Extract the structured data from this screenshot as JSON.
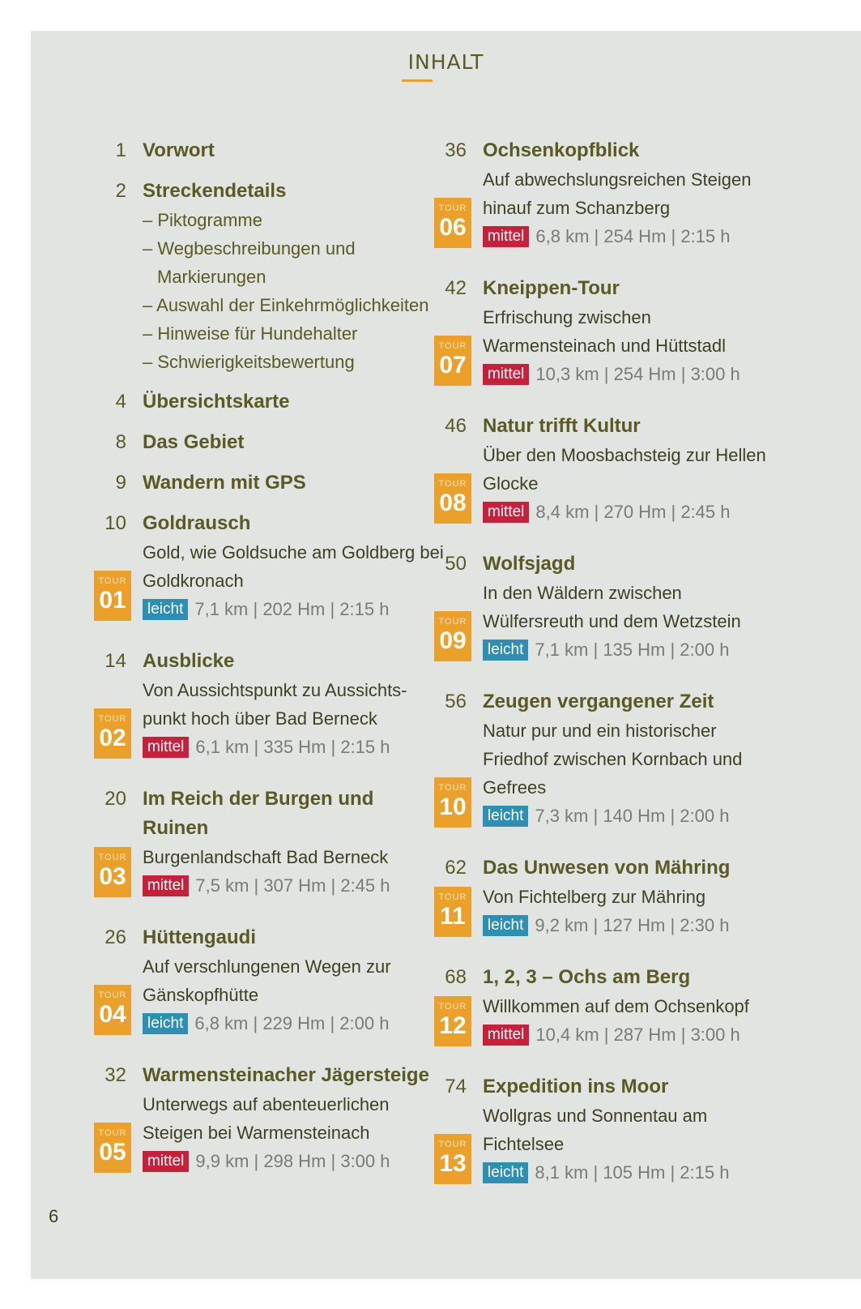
{
  "heading": "INHALT",
  "page_number": "6",
  "left": [
    {
      "num": "1",
      "title": "Vorwort"
    },
    {
      "num": "2",
      "title": "Streckendetails",
      "bullets": [
        "Piktogramme",
        "Wegbeschreibungen und Markierungen",
        "Auswahl der Einkehrmöglichkeiten",
        "Hinweise für Hundehalter",
        "Schwierigkeitsbewertung"
      ]
    },
    {
      "num": "4",
      "title": "Übersichtskarte"
    },
    {
      "num": "8",
      "title": "Das Gebiet"
    },
    {
      "num": "9",
      "title": "Wandern mit GPS"
    },
    {
      "num": "10",
      "title": "Goldrausch",
      "subtitle": "Gold, wie Goldsuche am Goldberg bei Goldkronach",
      "tour": "01",
      "level": "leicht",
      "stats": "7,1 km | 202 Hm | 2:15 h"
    },
    {
      "num": "14",
      "title": "Ausblicke",
      "subtitle": "Von Aussichtspunkt zu Aussichts-punkt hoch über Bad Berneck",
      "tour": "02",
      "level": "mittel",
      "stats": "6,1 km | 335 Hm | 2:15 h"
    },
    {
      "num": "20",
      "title": "Im Reich der Burgen und Ruinen",
      "subtitle": "Burgenlandschaft Bad Berneck",
      "tour": "03",
      "level": "mittel",
      "stats": "7,5 km | 307 Hm | 2:45 h"
    },
    {
      "num": "26",
      "title": "Hüttengaudi",
      "subtitle": "Auf verschlungenen Wegen zur Gänskopfhütte",
      "tour": "04",
      "level": "leicht",
      "stats": "6,8 km | 229 Hm | 2:00 h"
    },
    {
      "num": "32",
      "title": "Warmensteinacher Jägersteige",
      "subtitle": "Unterwegs auf abenteuerlichen Steigen bei Warmensteinach",
      "tour": "05",
      "level": "mittel",
      "stats": "9,9 km | 298 Hm | 3:00 h"
    }
  ],
  "right": [
    {
      "num": "36",
      "title": "Ochsenkopfblick",
      "subtitle": "Auf abwechslungsreichen Steigen hinauf zum Schanzberg",
      "tour": "06",
      "level": "mittel",
      "stats": "6,8 km | 254 Hm | 2:15 h"
    },
    {
      "num": "42",
      "title": "Kneippen-Tour",
      "subtitle": "Erfrischung zwischen Warmensteinach und Hüttstadl",
      "tour": "07",
      "level": "mittel",
      "stats": "10,3 km | 254 Hm | 3:00 h"
    },
    {
      "num": "46",
      "title": "Natur trifft Kultur",
      "subtitle": "Über den Moosbachsteig zur Hellen Glocke",
      "tour": "08",
      "level": "mittel",
      "stats": "8,4 km | 270 Hm | 2:45 h"
    },
    {
      "num": "50",
      "title": "Wolfsjagd",
      "subtitle": "In den Wäldern zwischen Wülfersreuth und dem Wetzstein",
      "tour": "09",
      "level": "leicht",
      "stats": "7,1 km | 135 Hm | 2:00 h"
    },
    {
      "num": "56",
      "title": "Zeugen vergangener Zeit",
      "subtitle": "Natur pur und ein historischer Friedhof zwischen Kornbach und Gefrees",
      "tour": "10",
      "level": "leicht",
      "stats": "7,3 km | 140 Hm | 2:00 h"
    },
    {
      "num": "62",
      "title": "Das Unwesen von Mähring",
      "subtitle": "Von Fichtelberg zur Mähring",
      "tour": "11",
      "level": "leicht",
      "stats": "9,2 km | 127 Hm | 2:30 h"
    },
    {
      "num": "68",
      "title": "1, 2, 3 – Ochs am Berg",
      "subtitle": "Willkommen auf dem Ochsenkopf",
      "tour": "12",
      "level": "mittel",
      "stats": "10,4 km | 287 Hm | 3:00 h"
    },
    {
      "num": "74",
      "title": "Expedition ins Moor",
      "subtitle": "Wollgras und Sonnentau am Fichtelsee",
      "tour": "13",
      "level": "leicht",
      "stats": "8,1 km | 105 Hm | 2:15 h"
    }
  ],
  "tour_label": "TOUR"
}
